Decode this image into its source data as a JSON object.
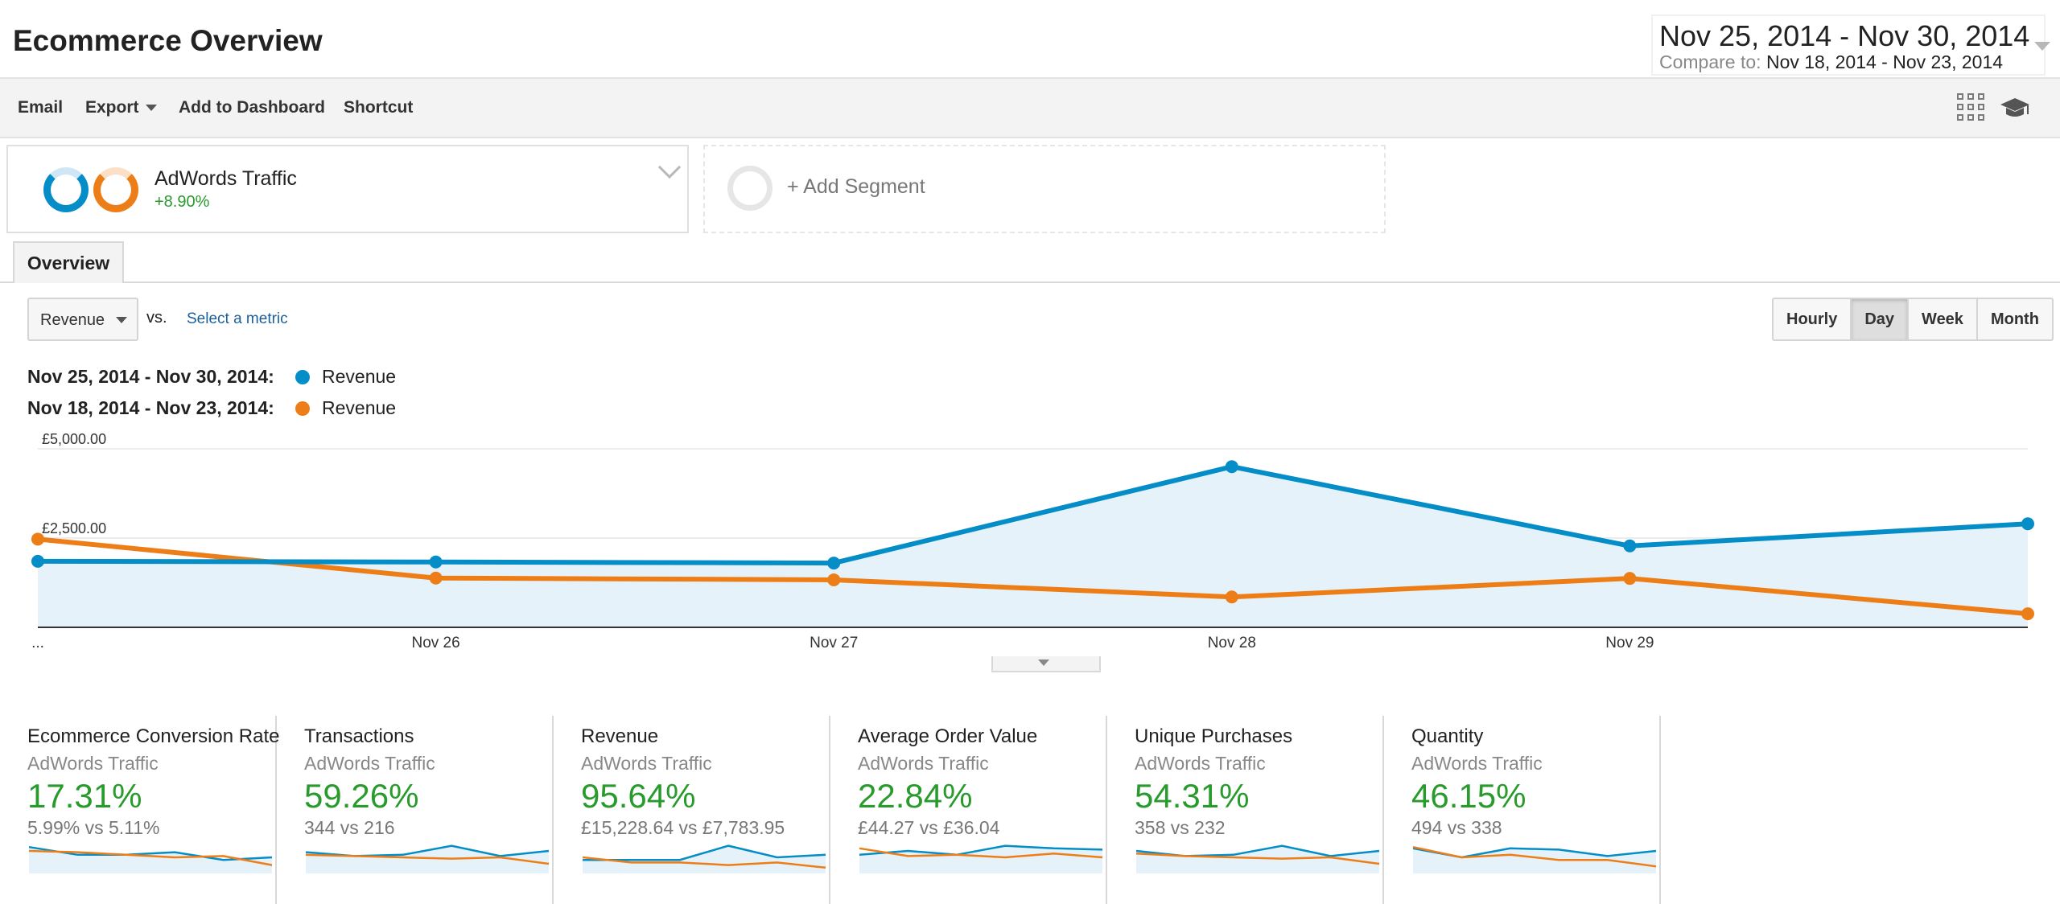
{
  "header": {
    "title": "Ecommerce Overview",
    "date_range": "Nov 25, 2014 - Nov 30, 2014",
    "compare_label": "Compare to:",
    "compare_range": "Nov 18, 2014 - Nov 23, 2014"
  },
  "toolbar": {
    "email": "Email",
    "export": "Export",
    "add_to_dashboard": "Add to Dashboard",
    "shortcut": "Shortcut",
    "icons": [
      "grid-icon",
      "graduation-cap-icon"
    ]
  },
  "segments": {
    "active": {
      "name": "AdWords Traffic",
      "delta": "+8.90%"
    },
    "add_label": "+ Add Segment"
  },
  "tabs": {
    "overview": "Overview"
  },
  "controls": {
    "metric": "Revenue",
    "vs": "vs.",
    "select_metric": "Select a metric",
    "granularity": [
      "Hourly",
      "Day",
      "Week",
      "Month"
    ],
    "granularity_active": "Day"
  },
  "legend": [
    {
      "range": "Nov 25, 2014 - Nov 30, 2014:",
      "metric": "Revenue",
      "color": "#058dc7"
    },
    {
      "range": "Nov 18, 2014 - Nov 23, 2014:",
      "metric": "Revenue",
      "color": "#ed7e17"
    }
  ],
  "chart_data": {
    "type": "line",
    "x": [
      "...",
      "Nov 26",
      "Nov 27",
      "Nov 28",
      "Nov 29",
      ""
    ],
    "y_ticks": [
      "£5,000.00",
      "£2,500.00"
    ],
    "ylim": [
      0,
      5000
    ],
    "grid": true,
    "series": [
      {
        "name": "Revenue",
        "color": "#058dc7",
        "fill": true,
        "values": [
          1850,
          1830,
          1800,
          4500,
          2280,
          2900
        ]
      },
      {
        "name": "Revenue",
        "color": "#ed7e17",
        "fill": false,
        "values": [
          2470,
          1380,
          1330,
          850,
          1370,
          380
        ]
      }
    ]
  },
  "scorecards": [
    {
      "title": "Ecommerce Conversion Rate",
      "segment": "AdWords Traffic",
      "pct": "17.31%",
      "vs": "5.99% vs 5.11%",
      "spark_a": [
        0.9,
        0.6,
        0.6,
        0.7,
        0.4,
        0.5
      ],
      "spark_b": [
        0.75,
        0.7,
        0.6,
        0.5,
        0.55,
        0.2
      ]
    },
    {
      "title": "Transactions",
      "segment": "AdWords Traffic",
      "pct": "59.26%",
      "vs": "344 vs 216",
      "spark_a": [
        0.7,
        0.55,
        0.6,
        0.95,
        0.55,
        0.75
      ],
      "spark_b": [
        0.6,
        0.55,
        0.5,
        0.45,
        0.5,
        0.25
      ]
    },
    {
      "title": "Revenue",
      "segment": "AdWords Traffic",
      "pct": "95.64%",
      "vs": "£15,228.64 vs £7,783.95",
      "spark_a": [
        0.4,
        0.4,
        0.4,
        0.95,
        0.5,
        0.6
      ],
      "spark_b": [
        0.5,
        0.3,
        0.3,
        0.2,
        0.3,
        0.1
      ]
    },
    {
      "title": "Average Order Value",
      "segment": "AdWords Traffic",
      "pct": "22.84%",
      "vs": "£44.27 vs £36.04",
      "spark_a": [
        0.6,
        0.75,
        0.6,
        0.95,
        0.85,
        0.8
      ],
      "spark_b": [
        0.85,
        0.55,
        0.6,
        0.5,
        0.65,
        0.5
      ]
    },
    {
      "title": "Unique Purchases",
      "segment": "AdWords Traffic",
      "pct": "54.31%",
      "vs": "358 vs 232",
      "spark_a": [
        0.75,
        0.55,
        0.6,
        0.95,
        0.55,
        0.75
      ],
      "spark_b": [
        0.65,
        0.55,
        0.5,
        0.45,
        0.5,
        0.25
      ]
    },
    {
      "title": "Quantity",
      "segment": "AdWords Traffic",
      "pct": "46.15%",
      "vs": "494 vs 338",
      "spark_a": [
        0.85,
        0.5,
        0.85,
        0.8,
        0.55,
        0.75
      ],
      "spark_b": [
        0.9,
        0.5,
        0.6,
        0.4,
        0.4,
        0.15
      ]
    }
  ]
}
